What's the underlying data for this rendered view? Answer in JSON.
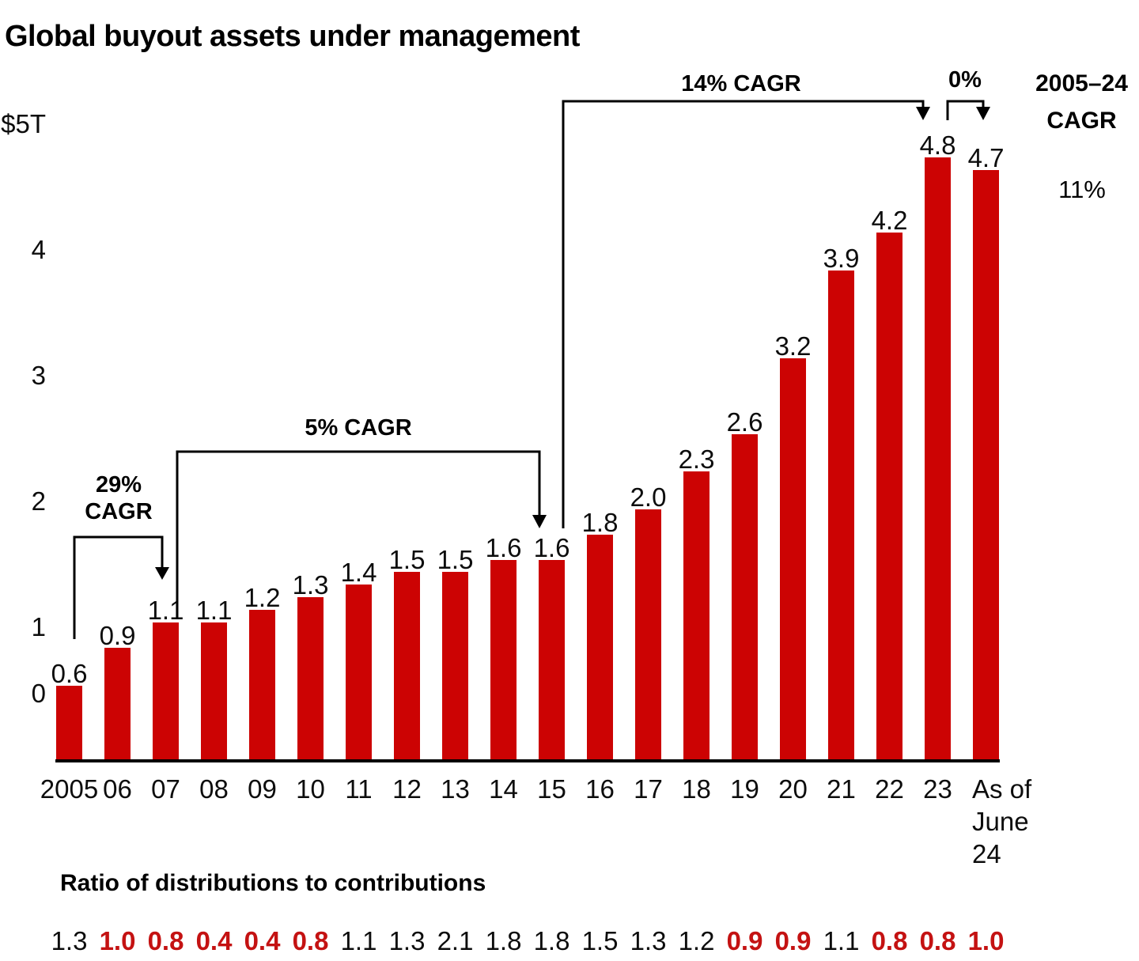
{
  "title": "Global buyout assets under management",
  "colors": {
    "bar_red": "#cc0303",
    "text_red": "#c41212",
    "text_dark": "#0d0d0d",
    "line_black": "#000000"
  },
  "chart_data": {
    "type": "bar",
    "title": "Global buyout assets under management",
    "categories": [
      "2005",
      "06",
      "07",
      "08",
      "09",
      "10",
      "11",
      "12",
      "13",
      "14",
      "15",
      "16",
      "17",
      "18",
      "19",
      "20",
      "21",
      "22",
      "23",
      "As of June 24"
    ],
    "values": [
      0.6,
      0.9,
      1.1,
      1.1,
      1.2,
      1.3,
      1.4,
      1.5,
      1.5,
      1.6,
      1.6,
      1.8,
      2.0,
      2.3,
      2.6,
      3.2,
      3.9,
      4.2,
      4.8,
      4.7
    ],
    "value_labels": [
      "0.6",
      "0.9",
      "1.1",
      "1.1",
      "1.2",
      "1.3",
      "1.4",
      "1.5",
      "1.5",
      "1.6",
      "1.6",
      "1.8",
      "2.0",
      "2.3",
      "2.6",
      "3.2",
      "3.9",
      "4.2",
      "4.8",
      "4.7"
    ],
    "y_ticks": [
      {
        "label": "$5T",
        "value": 5
      },
      {
        "label": "4",
        "value": 4
      },
      {
        "label": "3",
        "value": 3
      },
      {
        "label": "2",
        "value": 2
      },
      {
        "label": "1",
        "value": 1
      },
      {
        "label": "0",
        "value": 0
      }
    ],
    "ylim": [
      0,
      5
    ],
    "grid": false,
    "legend": "none",
    "annotations": [
      {
        "id": "cagr-2005-07",
        "lines": [
          "29%",
          "CAGR"
        ],
        "from": "2005",
        "to": "07"
      },
      {
        "id": "cagr-07-15",
        "lines": [
          "5% CAGR"
        ],
        "from": "07",
        "to": "15"
      },
      {
        "id": "cagr-15-23",
        "lines": [
          "14% CAGR"
        ],
        "from": "15",
        "to": "23"
      },
      {
        "id": "cagr-23-24",
        "lines": [
          "0%"
        ],
        "from": "23",
        "to": "As of June 24"
      },
      {
        "id": "cagr-2005-24",
        "lines": [
          "2005–24",
          "CAGR"
        ],
        "value": "11%"
      }
    ],
    "ratio_row": {
      "label": "Ratio of distributions to contributions",
      "values": [
        {
          "text": "1.3",
          "highlight": false
        },
        {
          "text": "1.0",
          "highlight": true
        },
        {
          "text": "0.8",
          "highlight": true
        },
        {
          "text": "0.4",
          "highlight": true
        },
        {
          "text": "0.4",
          "highlight": true
        },
        {
          "text": "0.8",
          "highlight": true
        },
        {
          "text": "1.1",
          "highlight": false
        },
        {
          "text": "1.3",
          "highlight": false
        },
        {
          "text": "2.1",
          "highlight": false
        },
        {
          "text": "1.8",
          "highlight": false
        },
        {
          "text": "1.8",
          "highlight": false
        },
        {
          "text": "1.5",
          "highlight": false
        },
        {
          "text": "1.3",
          "highlight": false
        },
        {
          "text": "1.2",
          "highlight": false
        },
        {
          "text": "0.9",
          "highlight": true
        },
        {
          "text": "0.9",
          "highlight": true
        },
        {
          "text": "1.1",
          "highlight": false
        },
        {
          "text": "0.8",
          "highlight": true
        },
        {
          "text": "0.8",
          "highlight": true
        },
        {
          "text": "1.0",
          "highlight": true
        }
      ]
    }
  }
}
